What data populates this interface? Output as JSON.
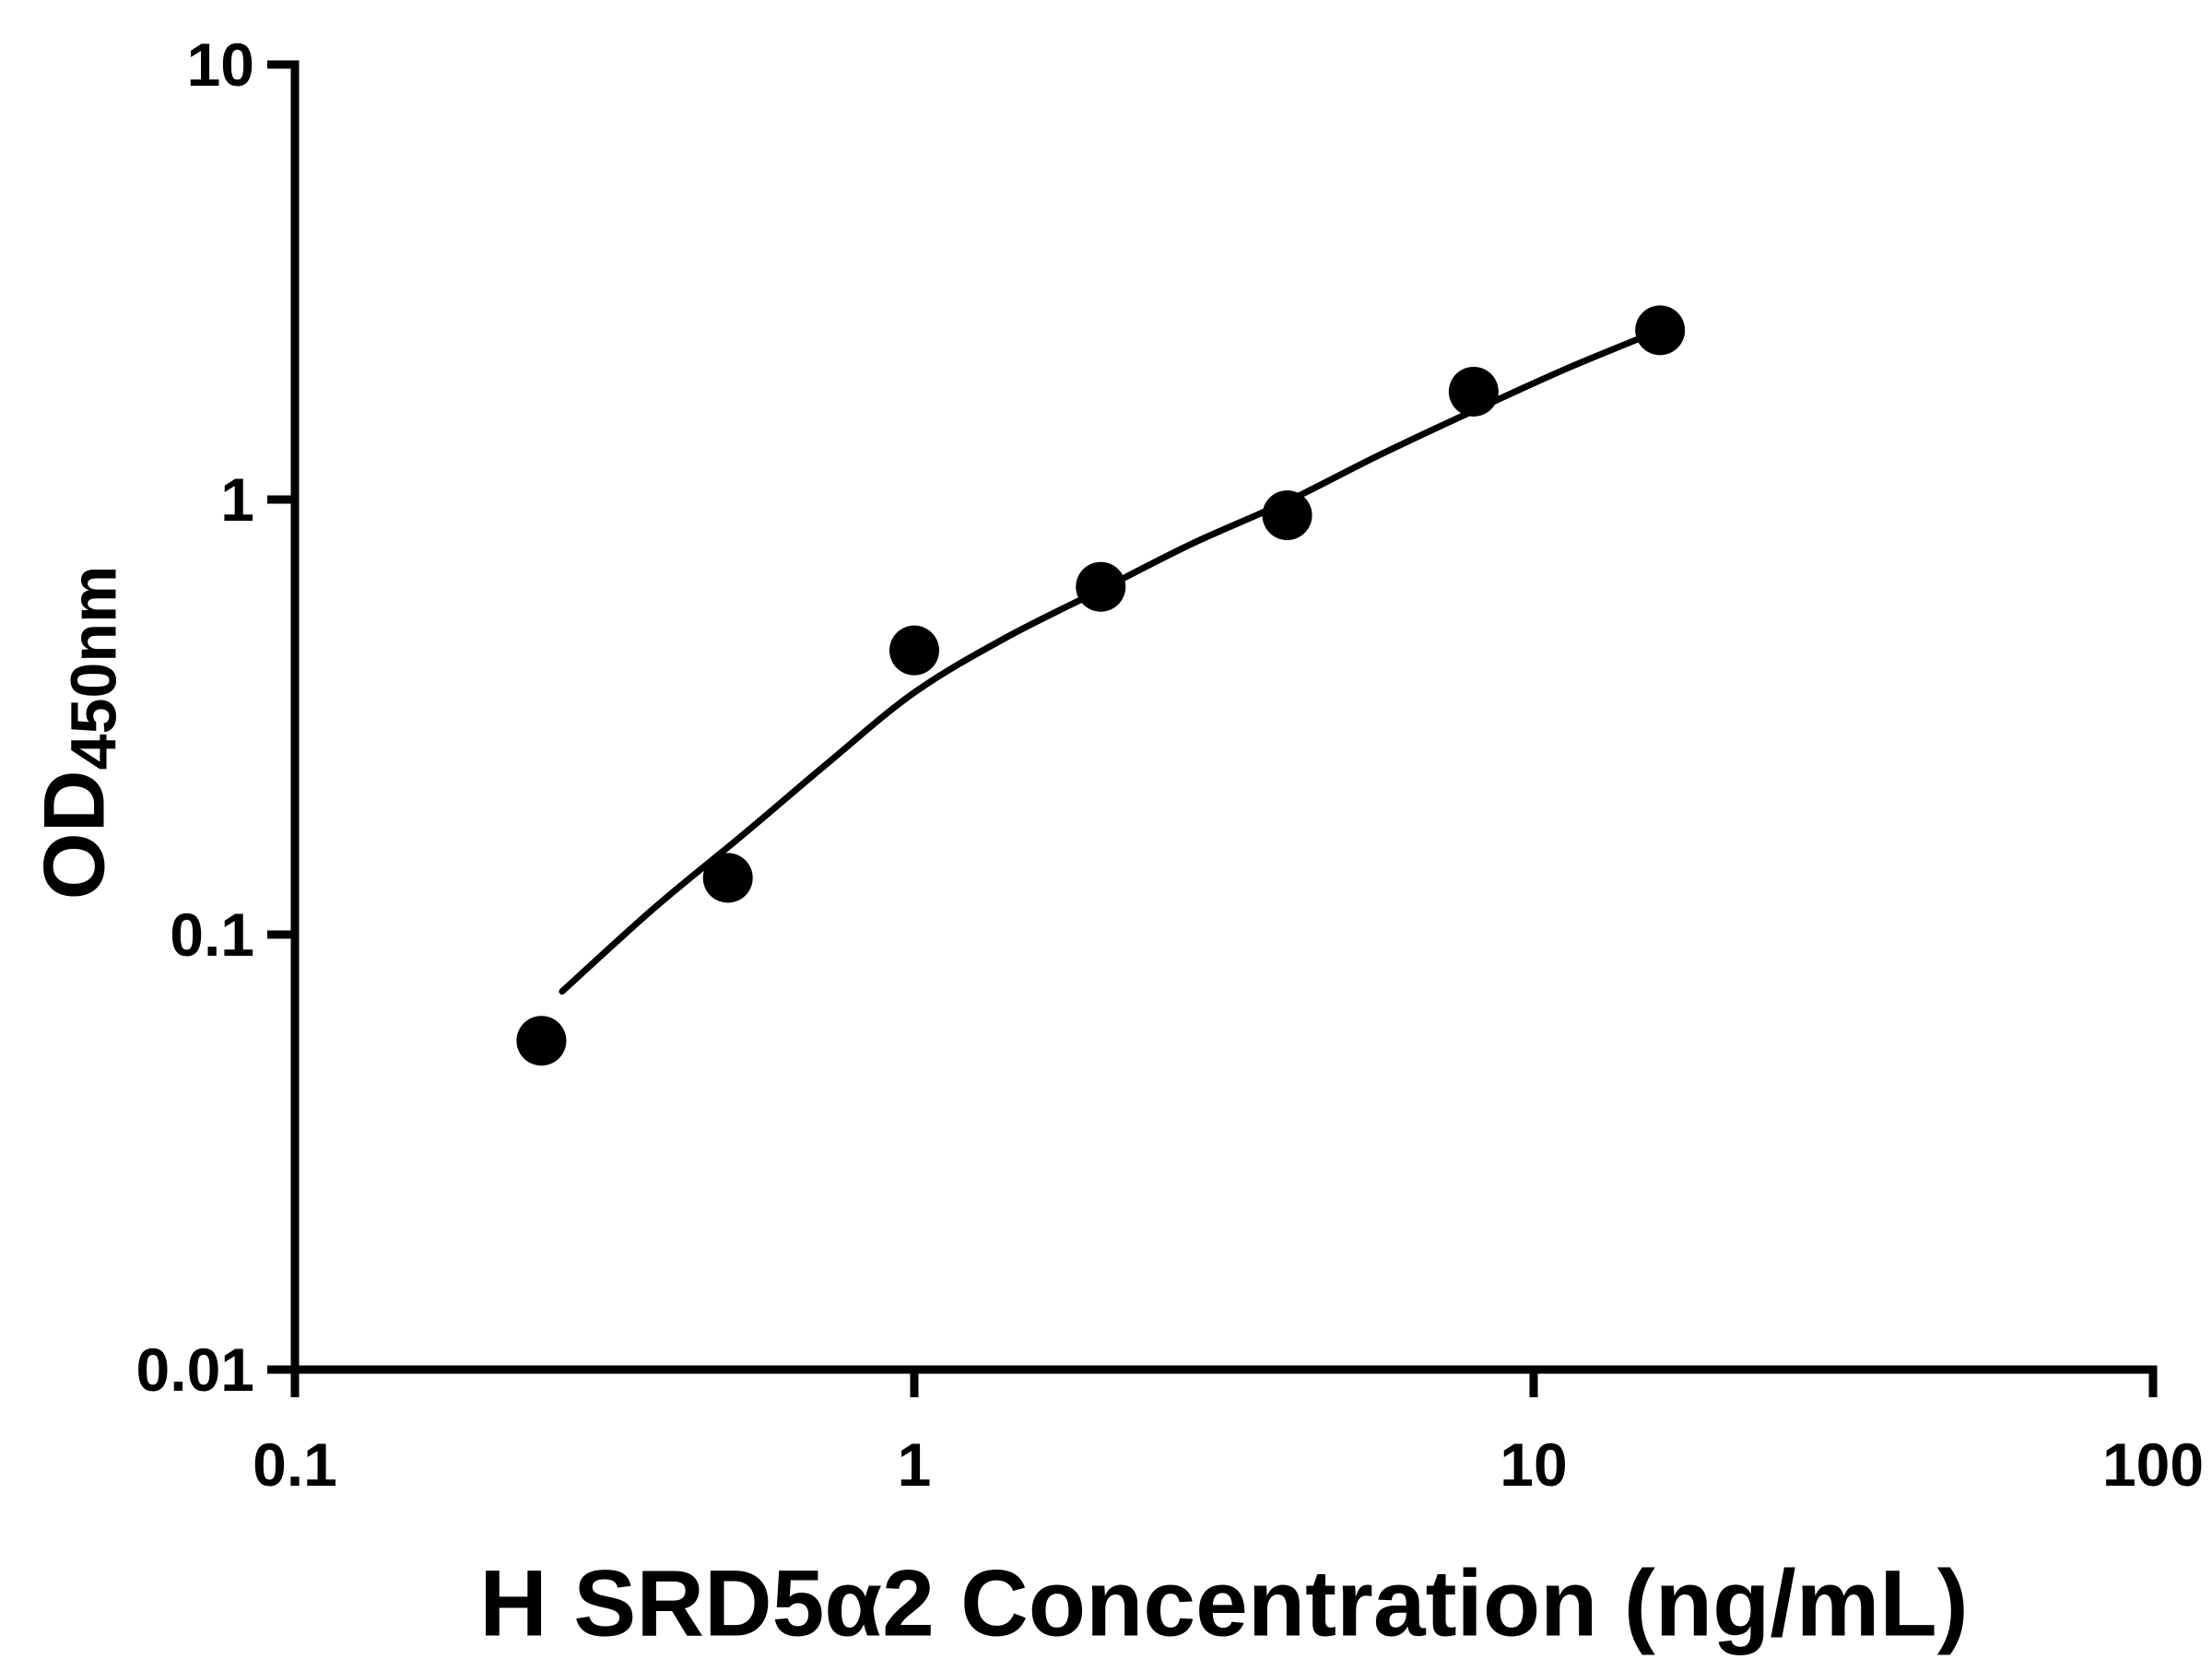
{
  "figure": {
    "background": "#ffffff",
    "axis_color": "#000000",
    "text_color": "#000000"
  },
  "chart_data": {
    "type": "scatter",
    "title": "",
    "xlabel": "H SRD5α2 Concentration (ng/mL)",
    "ylabel_main": "OD",
    "ylabel_sub": "450nm",
    "x_scale": "log",
    "y_scale": "log",
    "xlim": [
      0.1,
      100
    ],
    "ylim": [
      0.01,
      10
    ],
    "x_ticks": [
      0.1,
      1,
      10,
      100
    ],
    "x_tick_labels": [
      "0.1",
      "1",
      "10",
      "100"
    ],
    "y_ticks": [
      0.01,
      0.1,
      1,
      10
    ],
    "y_tick_labels": [
      "0.01",
      "0.1",
      "1",
      "10"
    ],
    "grid": false,
    "legend": "none",
    "series": [
      {
        "name": "fit-curve",
        "type": "line",
        "color": "#000000",
        "points": [
          {
            "x": 0.27,
            "y": 0.074
          },
          {
            "x": 0.38,
            "y": 0.115
          },
          {
            "x": 0.53,
            "y": 0.17
          },
          {
            "x": 0.73,
            "y": 0.25
          },
          {
            "x": 1.0,
            "y": 0.36
          },
          {
            "x": 1.4,
            "y": 0.48
          },
          {
            "x": 2.0,
            "y": 0.62
          },
          {
            "x": 2.8,
            "y": 0.79
          },
          {
            "x": 4.0,
            "y": 0.99
          },
          {
            "x": 5.6,
            "y": 1.26
          },
          {
            "x": 8.0,
            "y": 1.6
          },
          {
            "x": 11.3,
            "y": 2.0
          },
          {
            "x": 16.0,
            "y": 2.45
          }
        ]
      },
      {
        "name": "standard-points",
        "type": "scatter",
        "marker": "filled-circle",
        "color": "#000000",
        "points": [
          {
            "x": 0.25,
            "y": 0.057
          },
          {
            "x": 0.5,
            "y": 0.135
          },
          {
            "x": 1,
            "y": 0.45
          },
          {
            "x": 2,
            "y": 0.63
          },
          {
            "x": 4,
            "y": 0.92
          },
          {
            "x": 8,
            "y": 1.77
          },
          {
            "x": 16,
            "y": 2.45
          }
        ]
      }
    ]
  }
}
